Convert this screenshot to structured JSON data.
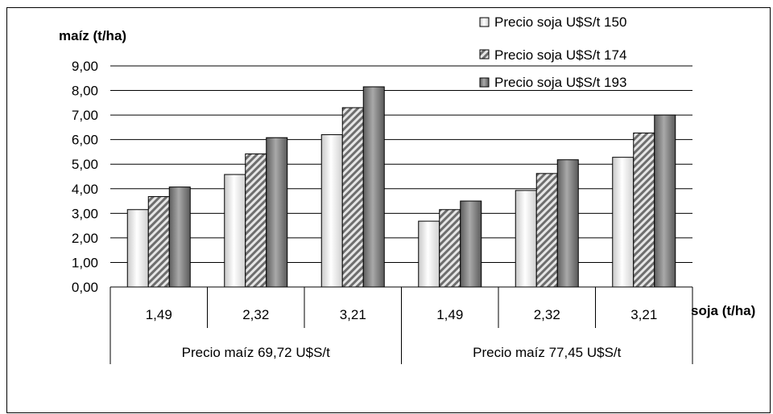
{
  "chart_data": {
    "type": "bar",
    "ylabel": "maíz (t/ha)",
    "xlabel": "soja (t/ha)",
    "ylim": [
      0,
      9
    ],
    "y_ticks": [
      "0,00",
      "1,00",
      "2,00",
      "3,00",
      "4,00",
      "5,00",
      "6,00",
      "7,00",
      "8,00",
      "9,00"
    ],
    "grid": true,
    "legend_position": "top-right",
    "categories": [
      "1,49",
      "2,32",
      "3,21",
      "1,49",
      "2,32",
      "3,21"
    ],
    "groups": [
      "Precio maíz 69,72 U$S/t",
      "Precio maíz 77,45 U$S/t"
    ],
    "series": [
      {
        "name": "Precio soja U$S/t 150",
        "color": "#eeeeee",
        "pattern": "light-gradient",
        "values": [
          3.15,
          4.58,
          6.2,
          2.68,
          3.93,
          5.28
        ]
      },
      {
        "name": "Precio soja U$S/t 174",
        "color": "#8c8c8c",
        "pattern": "diagonal-hatch",
        "values": [
          3.68,
          5.42,
          7.3,
          3.15,
          4.62,
          6.27
        ]
      },
      {
        "name": "Precio soja U$S/t 193",
        "color": "#7a7a7a",
        "pattern": "dark-gradient",
        "values": [
          4.07,
          6.08,
          8.15,
          3.5,
          5.18,
          7.0
        ]
      }
    ]
  }
}
